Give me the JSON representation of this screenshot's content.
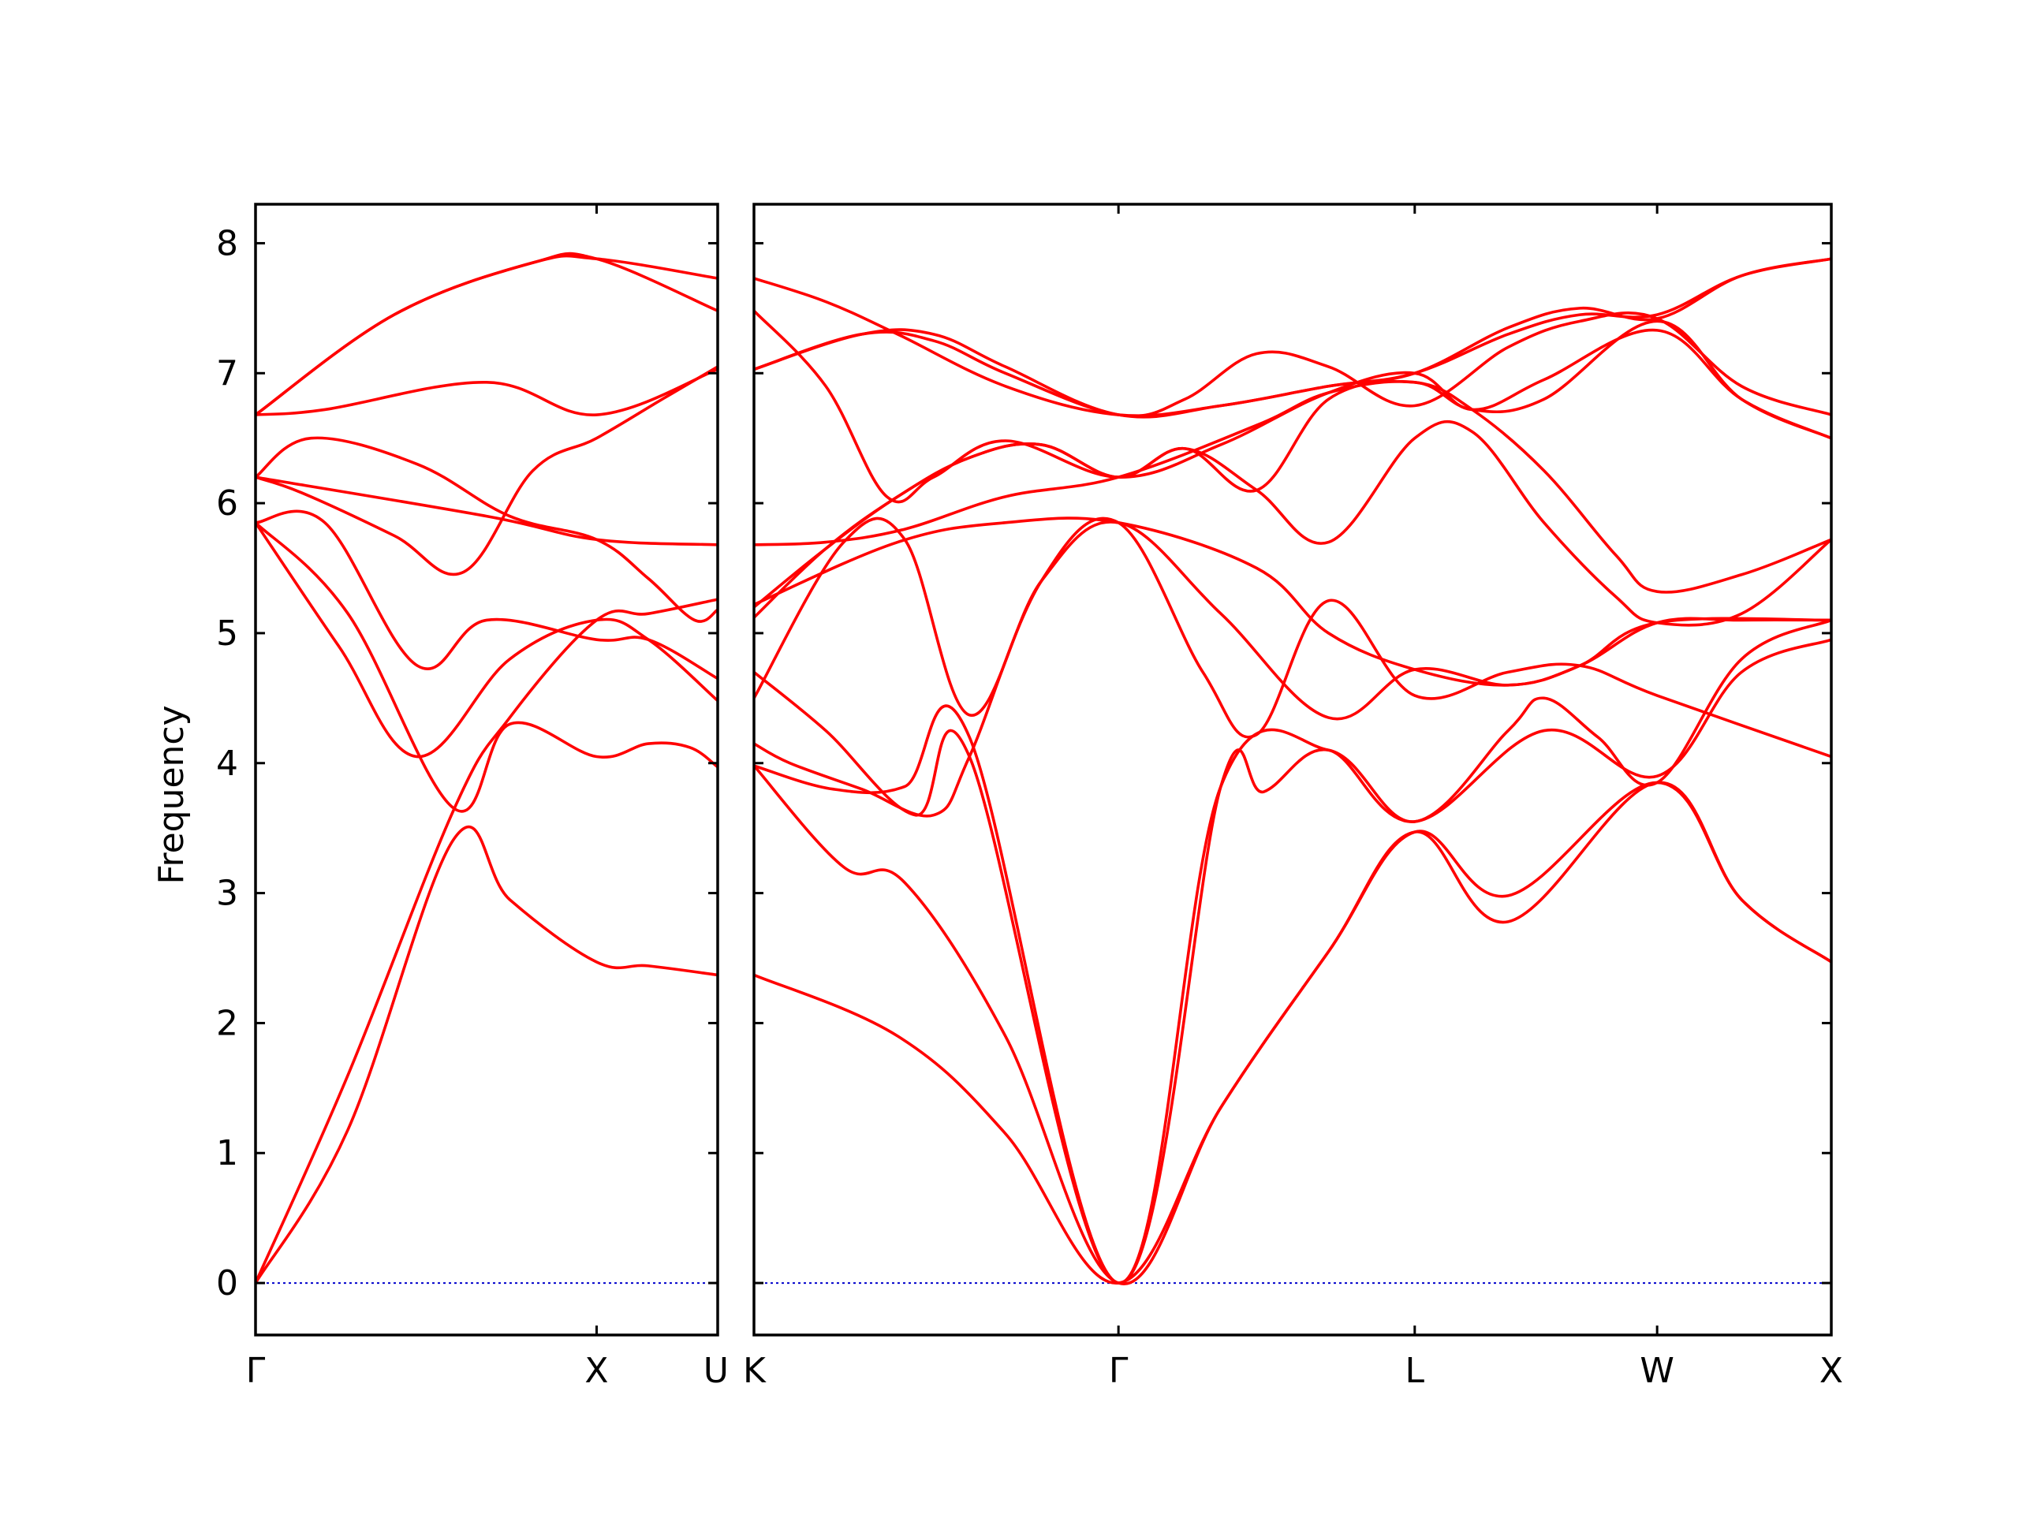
{
  "chart_data": {
    "type": "line",
    "title": "",
    "xlabel": "",
    "ylabel": "Frequency",
    "ylim": [
      -0.4,
      8.3
    ],
    "yticks": [
      0,
      1,
      2,
      3,
      4,
      5,
      6,
      7,
      8
    ],
    "grid": false,
    "legend": "none",
    "band_color": "#ff0000",
    "zero_line_color": "#0000cc",
    "panels": [
      {
        "path": [
          "Γ",
          "X",
          "U"
        ],
        "xlim": [
          0,
          1.0
        ],
        "ticks": [
          {
            "x": 0.0,
            "label": "Γ"
          },
          {
            "x": 0.738,
            "label": "X"
          },
          {
            "x": 1.0,
            "label": "U"
          }
        ],
        "series": [
          {
            "x": [
              0,
              0.2,
              0.43,
              0.55,
              0.738,
              0.85,
              1.0
            ],
            "y": [
              0,
              1.18,
              3.42,
              2.95,
              2.47,
              2.44,
              2.37
            ]
          },
          {
            "x": [
              0,
              0.2,
              0.43,
              0.55,
              0.738,
              0.85,
              1.0
            ],
            "y": [
              0,
              1.6,
              3.65,
              4.35,
              5.1,
              5.15,
              5.26
            ]
          },
          {
            "x": [
              0,
              0.18,
              0.35,
              0.55,
              0.738,
              0.85,
              1.0
            ],
            "y": [
              5.85,
              4.9,
              4.05,
              4.8,
              5.1,
              4.95,
              4.48
            ]
          },
          {
            "x": [
              0,
              0.2,
              0.43,
              0.55,
              0.738,
              0.85,
              0.94,
              1.0
            ],
            "y": [
              5.85,
              5.15,
              3.65,
              4.3,
              4.05,
              4.15,
              4.12,
              3.97
            ]
          },
          {
            "x": [
              0,
              0.15,
              0.35,
              0.5,
              0.738,
              0.85,
              1.0
            ],
            "y": [
              5.85,
              5.85,
              4.75,
              5.1,
              4.95,
              4.95,
              4.65
            ]
          },
          {
            "x": [
              0,
              0.1,
              0.3,
              0.45,
              0.6,
              0.738,
              0.88,
              1.0
            ],
            "y": [
              6.2,
              6.08,
              5.75,
              5.47,
              6.25,
              6.5,
              6.8,
              7.05
            ]
          },
          {
            "x": [
              0,
              0.12,
              0.35,
              0.55,
              0.738,
              0.85,
              0.95,
              1.0
            ],
            "y": [
              6.2,
              6.5,
              6.3,
              5.9,
              5.72,
              5.42,
              5.1,
              5.18
            ]
          },
          {
            "x": [
              0,
              0.5,
              0.738,
              1.0
            ],
            "y": [
              6.2,
              5.9,
              5.72,
              5.68
            ]
          },
          {
            "x": [
              0,
              0.15,
              0.5,
              0.738,
              1.0
            ],
            "y": [
              6.68,
              6.72,
              6.93,
              6.68,
              7.03
            ]
          },
          {
            "x": [
              0,
              0.3,
              0.6,
              0.738,
              1.0
            ],
            "y": [
              6.68,
              7.45,
              7.85,
              7.88,
              7.48
            ]
          },
          {
            "x": [
              0,
              0.3,
              0.6,
              0.738,
              1.0
            ],
            "y": [
              6.68,
              7.45,
              7.85,
              7.88,
              7.73
            ]
          }
        ]
      },
      {
        "path": [
          "K",
          "Γ",
          "L",
          "W",
          "X"
        ],
        "xlim": [
          0,
          3.0
        ],
        "ticks": [
          {
            "x": 0.0,
            "label": "K"
          },
          {
            "x": 1.015,
            "label": "Γ"
          },
          {
            "x": 1.84,
            "label": "L"
          },
          {
            "x": 2.515,
            "label": "W"
          },
          {
            "x": 3.0,
            "label": "X"
          }
        ],
        "series": [
          {
            "x": [
              0,
              0.4,
              0.7,
              1.015,
              1.3,
              1.6,
              1.84,
              2.1,
              2.515,
              2.75,
              3.0
            ],
            "y": [
              2.37,
              1.9,
              1.15,
              0,
              1.35,
              2.55,
              3.47,
              2.98,
              3.85,
              2.95,
              2.47
            ]
          },
          {
            "x": [
              0,
              0.25,
              0.42,
              0.7,
              1.015,
              1.3,
              1.6,
              1.84,
              2.1,
              2.515,
              2.75,
              3.0
            ],
            "y": [
              3.98,
              3.2,
              3.08,
              1.9,
              0,
              1.35,
              2.55,
              3.47,
              2.78,
              3.85,
              2.95,
              2.47
            ]
          },
          {
            "x": [
              0,
              0.22,
              0.42,
              0.6,
              1.015,
              1.3,
              1.42,
              1.6,
              1.84,
              2.2,
              2.515,
              2.75,
              3.0
            ],
            "y": [
              3.98,
              3.8,
              3.82,
              4.2,
              0,
              3.82,
              3.78,
              4.1,
              3.55,
              4.25,
              3.9,
              4.7,
              4.95
            ]
          },
          {
            "x": [
              0,
              0.2,
              0.45,
              0.6,
              1.015,
              1.3,
              1.6,
              1.84,
              2.1,
              2.2,
              2.35,
              2.515,
              2.75,
              3.0
            ],
            "y": [
              4.7,
              4.25,
              3.6,
              4.05,
              0,
              3.82,
              4.1,
              3.55,
              4.25,
              4.5,
              4.2,
              3.85,
              4.8,
              5.1
            ]
          },
          {
            "x": [
              0,
              0.1,
              0.3,
              0.5,
              0.6,
              0.8,
              1.015,
              1.25,
              1.4,
              1.6,
              1.84,
              2.1,
              2.3,
              2.515,
              3.0
            ],
            "y": [
              4.15,
              4.0,
              3.8,
              3.6,
              4.05,
              5.4,
              5.85,
              4.7,
              4.22,
              5.25,
              4.52,
              4.7,
              4.75,
              4.52,
              4.05
            ]
          },
          {
            "x": [
              0,
              0.25,
              0.42,
              0.6,
              0.8,
              1.015,
              1.3,
              1.6,
              1.84,
              2.1,
              2.3,
              2.515,
              3.0
            ],
            "y": [
              4.5,
              5.7,
              5.72,
              4.37,
              5.4,
              5.85,
              5.15,
              4.35,
              4.72,
              4.6,
              4.75,
              5.08,
              5.1
            ]
          },
          {
            "x": [
              0,
              0.4,
              0.7,
              1.015,
              1.4,
              1.6,
              1.84,
              2.1,
              2.3,
              2.515,
              2.75,
              3.0
            ],
            "y": [
              5.22,
              5.7,
              5.85,
              5.85,
              5.5,
              5.0,
              4.72,
              4.6,
              4.75,
              5.08,
              5.1,
              5.1
            ]
          },
          {
            "x": [
              0,
              0.2,
              0.42,
              0.7,
              1.015,
              1.4,
              1.6,
              1.84,
              2.0,
              2.2,
              2.4,
              2.515,
              2.75,
              3.0
            ],
            "y": [
              5.68,
              5.7,
              5.8,
              6.05,
              6.2,
              6.6,
              6.85,
              6.93,
              6.72,
              6.25,
              5.6,
              5.32,
              5.45,
              5.72
            ]
          },
          {
            "x": [
              0,
              0.2,
              0.4,
              0.6,
              0.8,
              1.015,
              1.2,
              1.4,
              1.6,
              1.84,
              2.0,
              2.2,
              2.4,
              2.515,
              2.75,
              3.0
            ],
            "y": [
              5.2,
              5.65,
              6.05,
              6.35,
              6.45,
              6.2,
              6.42,
              6.1,
              5.7,
              6.5,
              6.55,
              5.85,
              5.28,
              5.08,
              5.15,
              5.72
            ]
          },
          {
            "x": [
              0,
              0.2,
              0.4,
              0.6,
              0.8,
              1.015,
              1.2,
              1.4,
              1.6,
              1.84,
              2.0,
              2.2,
              2.515,
              2.75,
              3.0
            ],
            "y": [
              5.12,
              5.65,
              6.05,
              6.35,
              6.45,
              6.2,
              6.42,
              6.1,
              6.8,
              6.93,
              6.72,
              6.8,
              7.4,
              6.8,
              6.5
            ]
          },
          {
            "x": [
              0,
              0.2,
              0.37,
              0.5,
              0.7,
              1.015,
              1.3,
              1.6,
              1.84,
              2.0,
              2.2,
              2.515,
              2.75,
              3.0
            ],
            "y": [
              7.48,
              6.9,
              6.05,
              6.2,
              6.48,
              6.2,
              6.45,
              6.85,
              7.0,
              6.72,
              6.95,
              7.33,
              6.8,
              6.5
            ]
          },
          {
            "x": [
              0,
              0.3,
              0.5,
              0.7,
              1.015,
              1.2,
              1.4,
              1.6,
              1.84,
              2.1,
              2.3,
              2.515,
              2.75,
              3.0
            ],
            "y": [
              7.03,
              7.3,
              7.25,
              7.0,
              6.68,
              6.8,
              7.15,
              7.05,
              6.75,
              7.2,
              7.4,
              7.42,
              6.9,
              6.68
            ]
          },
          {
            "x": [
              0,
              0.3,
              0.5,
              0.7,
              1.015,
              1.3,
              1.6,
              1.84,
              2.1,
              2.3,
              2.515,
              2.75,
              3.0
            ],
            "y": [
              7.03,
              7.3,
              7.3,
              7.05,
              6.68,
              6.75,
              6.9,
              7.0,
              7.3,
              7.45,
              7.45,
              7.75,
              7.88
            ]
          },
          {
            "x": [
              0,
              0.2,
              0.4,
              0.7,
              1.015,
              1.3,
              1.6,
              1.84,
              2.1,
              2.3,
              2.515,
              2.75,
              3.0
            ],
            "y": [
              7.73,
              7.55,
              7.3,
              6.9,
              6.68,
              6.75,
              6.9,
              7.0,
              7.35,
              7.5,
              7.42,
              7.75,
              7.88
            ]
          }
        ]
      }
    ]
  }
}
